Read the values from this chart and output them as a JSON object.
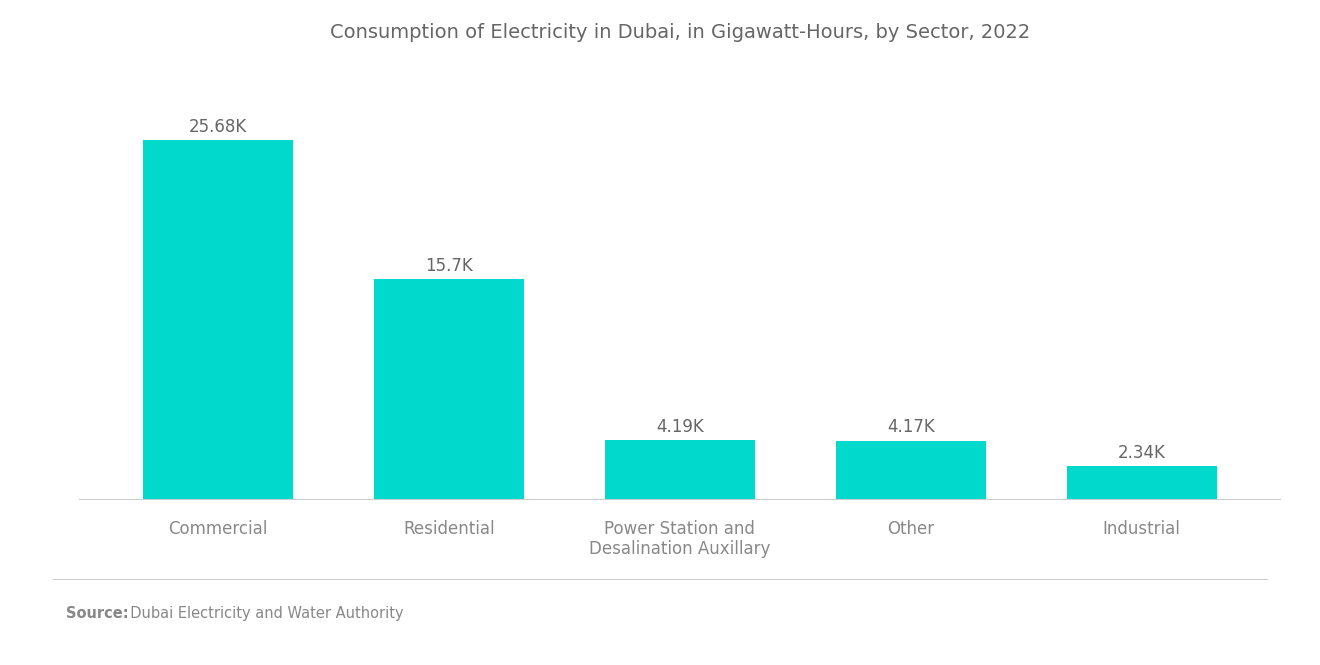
{
  "title": "Consumption of Electricity in Dubai, in Gigawatt-Hours, by Sector, 2022",
  "categories": [
    "Commercial",
    "Residential",
    "Power Station and\nDesalination Auxillary",
    "Other",
    "Industrial"
  ],
  "values": [
    25680,
    15700,
    4190,
    4170,
    2340
  ],
  "labels": [
    "25.68K",
    "15.7K",
    "4.19K",
    "4.17K",
    "2.34K"
  ],
  "bar_color": "#00D9CC",
  "background_color": "#ffffff",
  "title_color": "#666666",
  "label_color": "#666666",
  "xtick_color": "#888888",
  "source_text": "  Dubai Electricity and Water Authority",
  "source_bold": "Source:",
  "ylim": [
    0,
    30000
  ],
  "title_fontsize": 14,
  "label_fontsize": 12,
  "xtick_fontsize": 12,
  "source_fontsize": 10.5,
  "bar_width": 0.65
}
